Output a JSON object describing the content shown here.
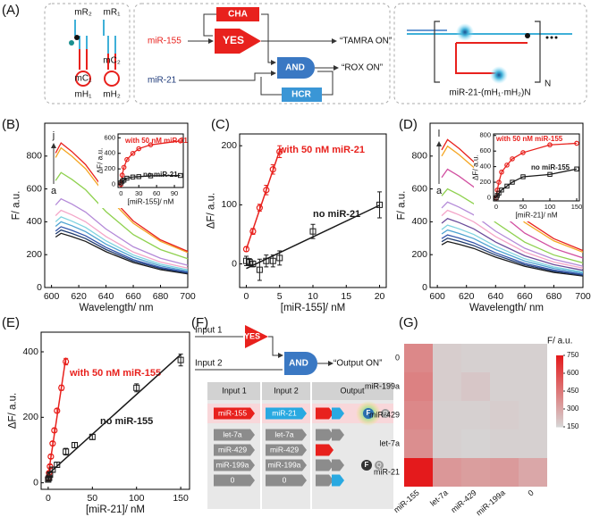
{
  "panel_labels": [
    "(A)",
    "(B)",
    "(C)",
    "(D)",
    "(E)",
    "(F)",
    "(G)"
  ],
  "diagram_a": {
    "hairpin_labels": [
      "mR₂",
      "mR₁",
      "mC₂",
      "mC₁",
      "mH₁",
      "mH₂"
    ],
    "cha": "CHA",
    "yes": "YES",
    "input_1": "miR-155",
    "output_1": "“TAMRA ON”",
    "and": "AND",
    "output_2": "“ROX ON”",
    "input_2": "miR-21",
    "hcr": "HCR",
    "repeat": "N",
    "product": "miR-21-(mH₁·mH₂)N"
  },
  "diagram_f": {
    "input_1": "Input 1",
    "yes": "YES",
    "input_2": "Input 2",
    "and": "AND",
    "output": "“Output ON”",
    "table": {
      "header": [
        "Input 1",
        "Input 2",
        "Output"
      ],
      "rows": [
        [
          "miR-155",
          "miR-21"
        ],
        [
          "let-7a",
          "let-7a"
        ],
        [
          "miR-429",
          "miR-429"
        ],
        [
          "miR-199a",
          "miR-199a"
        ],
        [
          "0",
          "0"
        ]
      ]
    },
    "fluor": "F",
    "quench": "Q"
  },
  "chart_data": [
    {
      "type": "line",
      "xlabel": "Wavelength/ nm",
      "ylabel": "F/ a.u.",
      "xlim": [
        595,
        700
      ],
      "xticks": [
        600,
        620,
        640,
        660,
        680,
        700
      ],
      "ylim": [
        0,
        1000
      ],
      "yticks": [
        0,
        200,
        400,
        600,
        800
      ],
      "annotations": [
        "j",
        "a"
      ],
      "x": [
        603,
        607,
        615,
        625,
        640,
        660,
        680,
        700
      ],
      "series": [
        {
          "color": "#1a1a1a",
          "values": [
            307,
            330,
            310,
            281,
            218,
            152,
            109,
            83
          ]
        },
        {
          "color": "#1f3a6e",
          "values": [
            326,
            350,
            329,
            298,
            231,
            161,
            116,
            88
          ]
        },
        {
          "color": "#3355aa",
          "values": [
            344,
            370,
            348,
            315,
            244,
            170,
            122,
            93
          ]
        },
        {
          "color": "#4fa3d1",
          "values": [
            372,
            400,
            376,
            340,
            264,
            184,
            132,
            100
          ]
        },
        {
          "color": "#7fd3e0",
          "values": [
            400,
            430,
            404,
            366,
            284,
            198,
            142,
            108
          ]
        },
        {
          "color": "#f4a6c8",
          "values": [
            437,
            470,
            442,
            400,
            310,
            216,
            155,
            118
          ]
        },
        {
          "color": "#b48ad8",
          "values": [
            502,
            540,
            508,
            459,
            356,
            248,
            178,
            135
          ]
        },
        {
          "color": "#8fd14f",
          "values": [
            651,
            700,
            658,
            595,
            462,
            322,
            231,
            175
          ]
        },
        {
          "color": "#f5a623",
          "values": [
            791,
            850,
            799,
            723,
            561,
            391,
            281,
            213
          ]
        },
        {
          "color": "#e8211d",
          "values": [
            818,
            880,
            827,
            748,
            581,
            405,
            290,
            220
          ]
        }
      ]
    },
    {
      "type": "scatter",
      "connect": true,
      "xlabel": "[miR-155]/ nM",
      "ylabel": "ΔF/ a.u.",
      "xlim": [
        -5,
        105
      ],
      "xticks": [
        0,
        30,
        60,
        90
      ],
      "ylim": [
        -40,
        650
      ],
      "yticks": [
        0,
        200,
        400,
        600
      ],
      "series": [
        {
          "name": "with 50 nM miR-21",
          "color": "#e8211d",
          "marker": "circle",
          "x": [
            0,
            2,
            5,
            10,
            20,
            30,
            50,
            100
          ],
          "values": [
            0,
            120,
            220,
            320,
            400,
            460,
            510,
            560
          ]
        },
        {
          "name": "no miR-21",
          "color": "#1a1a1a",
          "marker": "square",
          "x": [
            0,
            2,
            5,
            10,
            20,
            30,
            50,
            100
          ],
          "values": [
            20,
            40,
            55,
            80,
            95,
            100,
            110,
            115
          ]
        }
      ]
    },
    {
      "type": "scatter",
      "fit": "linear",
      "xlabel": "[miR-155]/ nM",
      "ylabel": "ΔF/ a.u.",
      "xlim": [
        -1,
        21
      ],
      "xticks": [
        0,
        5,
        10,
        15,
        20
      ],
      "ylim": [
        -40,
        220
      ],
      "yticks": [
        0,
        100,
        200
      ],
      "series": [
        {
          "name": "with 50 nM miR-21",
          "color": "#e8211d",
          "marker": "circle",
          "x": [
            0,
            1,
            2,
            3,
            4,
            5
          ],
          "values": [
            25,
            55,
            95,
            125,
            160,
            190
          ],
          "errors": [
            4,
            5,
            6,
            8,
            8,
            10
          ]
        },
        {
          "name": "no miR-21",
          "color": "#1a1a1a",
          "marker": "square",
          "x": [
            0,
            0.5,
            1,
            2,
            3,
            4,
            5,
            10,
            20
          ],
          "values": [
            5,
            3,
            0,
            -10,
            5,
            5,
            10,
            55,
            100
          ],
          "errors": [
            8,
            6,
            5,
            18,
            10,
            10,
            12,
            12,
            22
          ]
        }
      ]
    },
    {
      "type": "line",
      "xlabel": "Wavelength/ nm",
      "ylabel": "F/ a.u.",
      "xlim": [
        595,
        700
      ],
      "xticks": [
        600,
        620,
        640,
        660,
        680,
        700
      ],
      "ylim": [
        0,
        1000
      ],
      "yticks": [
        0,
        200,
        400,
        600,
        800
      ],
      "annotations": [
        "l",
        "a"
      ],
      "x": [
        603,
        607,
        615,
        625,
        640,
        660,
        680,
        700
      ],
      "series": [
        {
          "color": "#1a1a1a",
          "values": [
            260,
            280,
            263,
            238,
            185,
            129,
            92,
            70
          ]
        },
        {
          "color": "#1f3a6e",
          "values": [
            279,
            300,
            282,
            255,
            198,
            138,
            99,
            75
          ]
        },
        {
          "color": "#3355aa",
          "values": [
            298,
            320,
            301,
            272,
            211,
            147,
            106,
            80
          ]
        },
        {
          "color": "#4fa3d1",
          "values": [
            326,
            350,
            329,
            298,
            231,
            161,
            116,
            88
          ]
        },
        {
          "color": "#7fd3e0",
          "values": [
            353,
            380,
            357,
            323,
            251,
            175,
            125,
            95
          ]
        },
        {
          "color": "#6b4c9a",
          "values": [
            391,
            420,
            395,
            357,
            277,
            193,
            139,
            105
          ]
        },
        {
          "color": "#f4a6c8",
          "values": [
            437,
            470,
            442,
            400,
            310,
            216,
            155,
            118
          ]
        },
        {
          "color": "#b48ad8",
          "values": [
            484,
            520,
            489,
            442,
            343,
            239,
            172,
            130
          ]
        },
        {
          "color": "#8fd14f",
          "values": [
            558,
            600,
            564,
            510,
            396,
            276,
            198,
            150
          ]
        },
        {
          "color": "#d14fa0",
          "values": [
            670,
            720,
            677,
            612,
            475,
            331,
            238,
            180
          ]
        },
        {
          "color": "#f5a623",
          "values": [
            800,
            860,
            808,
            731,
            568,
            396,
            284,
            215
          ]
        },
        {
          "color": "#e8211d",
          "values": [
            837,
            900,
            846,
            765,
            594,
            414,
            297,
            225
          ]
        }
      ]
    },
    {
      "type": "scatter",
      "connect": true,
      "xlabel": "[miR-21]/ nM",
      "ylabel": "ΔF/ a.u.",
      "xlim": [
        -5,
        155
      ],
      "xticks": [
        0,
        50,
        100,
        150
      ],
      "ylim": [
        -40,
        820
      ],
      "yticks": [
        0,
        200,
        400,
        600,
        800
      ],
      "series": [
        {
          "name": "with 50 nM miR-155",
          "color": "#e8211d",
          "marker": "circle",
          "x": [
            0,
            2,
            5,
            10,
            20,
            30,
            50,
            100,
            150
          ],
          "values": [
            0,
            100,
            200,
            330,
            420,
            500,
            580,
            680,
            700
          ]
        },
        {
          "name": "no miR-155",
          "color": "#1a1a1a",
          "marker": "square",
          "x": [
            0,
            2,
            5,
            10,
            20,
            30,
            50,
            100,
            150
          ],
          "values": [
            0,
            30,
            60,
            100,
            150,
            200,
            270,
            300,
            370
          ]
        }
      ]
    },
    {
      "type": "scatter",
      "fit": "linear",
      "xlabel": "[miR-21]/ nM",
      "ylabel": "ΔF/ a.u.",
      "xlim": [
        -8,
        160
      ],
      "xticks": [
        0,
        50,
        100,
        150
      ],
      "ylim": [
        -20,
        460
      ],
      "yticks": [
        0,
        200,
        400
      ],
      "series": [
        {
          "name": "with 50 nM miR-155",
          "color": "#e8211d",
          "marker": "circle",
          "x": [
            0,
            1,
            2,
            3,
            5,
            7,
            10,
            15,
            20
          ],
          "values": [
            15,
            30,
            50,
            80,
            120,
            160,
            220,
            290,
            370
          ],
          "errors": [
            5,
            5,
            5,
            6,
            6,
            6,
            6,
            8,
            10
          ]
        },
        {
          "name": "no miR-155",
          "color": "#1a1a1a",
          "marker": "square",
          "x": [
            0,
            1,
            2,
            5,
            10,
            20,
            30,
            50,
            100,
            150
          ],
          "values": [
            10,
            15,
            25,
            40,
            55,
            95,
            115,
            140,
            290,
            375
          ],
          "errors": [
            5,
            5,
            6,
            8,
            8,
            10,
            8,
            8,
            12,
            18
          ]
        }
      ]
    },
    {
      "type": "heatmap",
      "colorbar_label": "F/ a.u.",
      "rows": [
        "0",
        "miR-199a",
        "miR-429",
        "let-7a",
        "miR-21"
      ],
      "columns": [
        "miR-155",
        "let-7a",
        "miR-429",
        "miR-199a",
        "0"
      ],
      "values": [
        [
          400,
          180,
          170,
          170,
          170
        ],
        [
          420,
          180,
          200,
          170,
          170
        ],
        [
          400,
          170,
          170,
          180,
          170
        ],
        [
          380,
          170,
          160,
          170,
          170
        ],
        [
          750,
          350,
          330,
          340,
          300
        ]
      ],
      "clim": [
        150,
        750
      ],
      "cticks": [
        150,
        300,
        450,
        600,
        750
      ],
      "colorscale": [
        "#d6d6d6",
        "#e41a1c"
      ]
    }
  ]
}
